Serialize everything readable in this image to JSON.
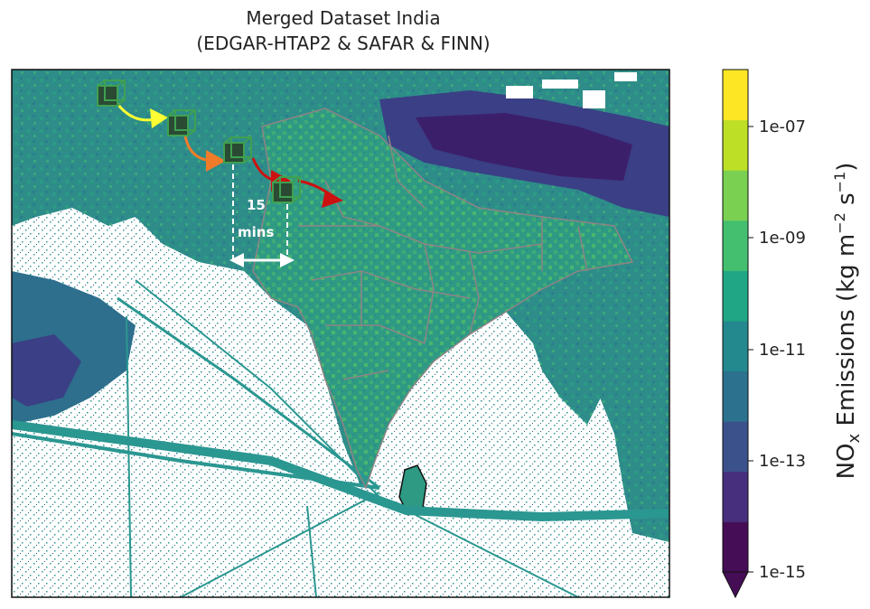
{
  "title_line1": "Merged Dataset India",
  "title_line2": "(EDGAR-HTAP2 & SAFAR & FINN)",
  "map": {
    "annotation_value": "15",
    "annotation_unit": "mins",
    "palette": {
      "ocean": "#ffffff",
      "land_base": "#2e8c89",
      "land_green": "#3aa67e",
      "land_dark": "#2d5f8c",
      "plateau": "#3b3f85",
      "plateau_deep": "#3c1f6b",
      "boundary": "#8f8484",
      "shipping": "#2b9791"
    }
  },
  "colorbar": {
    "label": "NOx Emissions (kg m⁻² s⁻¹)",
    "label_main": "NO",
    "label_sub": "x",
    "label_rest": " Emissions (kg m",
    "label_sup1": "−2",
    "label_mid": " s",
    "label_sup2": "−1",
    "label_end": ")",
    "ticks": [
      "1e-07",
      "1e-09",
      "1e-11",
      "1e-13",
      "1e-15"
    ],
    "colors": [
      "#450d55",
      "#472f7d",
      "#3b518b",
      "#2c718e",
      "#23898e",
      "#21a685",
      "#44bf70",
      "#7ad151",
      "#bddf26",
      "#fde725"
    ],
    "extend": "min"
  }
}
